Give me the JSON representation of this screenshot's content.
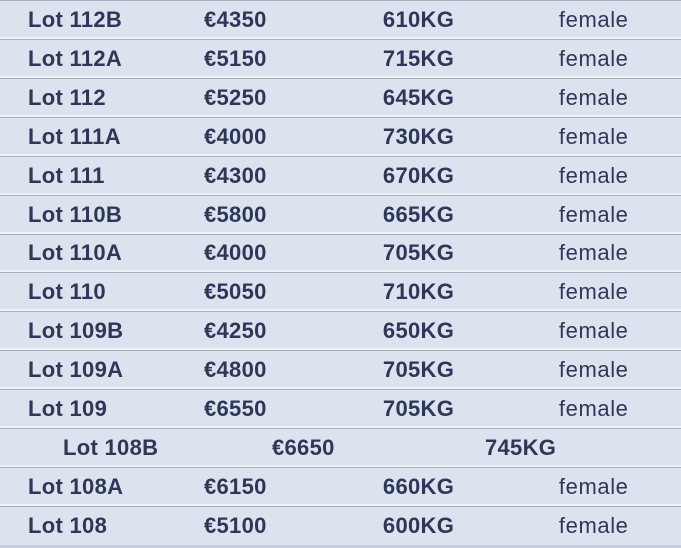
{
  "colors": {
    "row_background": "#dce3ef",
    "text": "#2e3757",
    "divider_line": "#a9b1c0",
    "divider_highlight": "#eef1f7",
    "bottom_edge": "#c6cede"
  },
  "table": {
    "rows": [
      {
        "lot": "Lot 112B",
        "price": "€4350",
        "weight": "610KG",
        "gender": "female"
      },
      {
        "lot": "Lot 112A",
        "price": "€5150",
        "weight": "715KG",
        "gender": "female"
      },
      {
        "lot": "Lot 112",
        "price": "€5250",
        "weight": "645KG",
        "gender": "female"
      },
      {
        "lot": "Lot 111A",
        "price": "€4000",
        "weight": "730KG",
        "gender": "female"
      },
      {
        "lot": "Lot 111",
        "price": "€4300",
        "weight": "670KG",
        "gender": "female"
      },
      {
        "lot": "Lot 110B",
        "price": "€5800",
        "weight": "665KG",
        "gender": "female"
      },
      {
        "lot": "Lot 110A",
        "price": "€4000",
        "weight": "705KG",
        "gender": "female"
      },
      {
        "lot": "Lot 110",
        "price": "€5050",
        "weight": "710KG",
        "gender": "female"
      },
      {
        "lot": "Lot 109B",
        "price": "€4250",
        "weight": "650KG",
        "gender": "female"
      },
      {
        "lot": "Lot 109A",
        "price": "€4800",
        "weight": "705KG",
        "gender": "female"
      },
      {
        "lot": "Lot 109",
        "price": "€6550",
        "weight": "705KG",
        "gender": "female"
      },
      {
        "lot": "Lot 108B",
        "price": "€6650",
        "weight": "745KG",
        "gender": ""
      },
      {
        "lot": "Lot 108A",
        "price": "€6150",
        "weight": "660KG",
        "gender": "female"
      },
      {
        "lot": "Lot 108",
        "price": "€5100",
        "weight": "600KG",
        "gender": "female"
      }
    ]
  }
}
